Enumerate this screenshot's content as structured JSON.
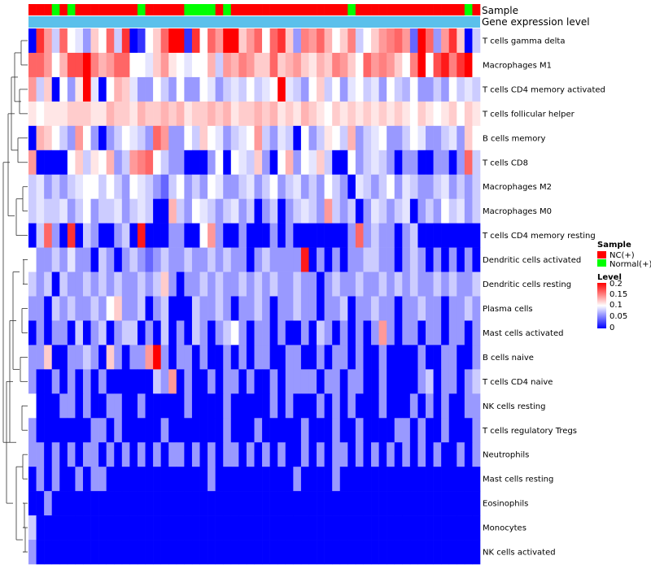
{
  "chart_data": {
    "type": "heatmap",
    "annotation_labels": {
      "sample": "Sample",
      "gene": "Gene expression level"
    },
    "rows": [
      "T cells gamma delta",
      "Macrophages M1",
      "T cells CD4 memory activated",
      "T cells follicular helper",
      "B cells memory",
      "T cells CD8",
      "Macrophages M2",
      "Macrophages M0",
      "T cells CD4 memory resting",
      "Dendritic cells activated",
      "Dendritic cells resting",
      "Plasma cells",
      "Mast cells activated",
      "B cells naive",
      "T cells CD4 naive",
      "NK cells resting",
      "T cells regulatory  Tregs",
      "Neutrophils",
      "Mast cells resting",
      "Eosinophils",
      "Monocytes",
      "NK cells activated"
    ],
    "sample_groups": [
      "NC",
      "NC",
      "NC",
      "N",
      "NC",
      "N",
      "NC",
      "NC",
      "NC",
      "NC",
      "NC",
      "NC",
      "NC",
      "NC",
      "N",
      "NC",
      "NC",
      "NC",
      "NC",
      "NC",
      "N",
      "N",
      "N",
      "N",
      "NC",
      "N",
      "NC",
      "NC",
      "NC",
      "NC",
      "NC",
      "NC",
      "NC",
      "NC",
      "NC",
      "NC",
      "NC",
      "NC",
      "NC",
      "NC",
      "NC",
      "N",
      "NC",
      "NC",
      "NC",
      "NC",
      "NC",
      "NC",
      "NC",
      "NC",
      "NC",
      "NC",
      "NC",
      "NC",
      "NC",
      "NC",
      "N",
      "NC"
    ],
    "values": [
      [
        0.0,
        0.18,
        0.14,
        0.08,
        0.16,
        0.1,
        0.09,
        0.06,
        0.12,
        0.1,
        0.16,
        0.08,
        0.18,
        0.0,
        0.02,
        0.1,
        0.12,
        0.16,
        0.2,
        0.2,
        0.02,
        0.18,
        0.1,
        0.16,
        0.14,
        0.2,
        0.2,
        0.12,
        0.14,
        0.16,
        0.1,
        0.16,
        0.18,
        0.12,
        0.06,
        0.15,
        0.14,
        0.16,
        0.13,
        0.1,
        0.12,
        0.15,
        0.08,
        0.1,
        0.12,
        0.14,
        0.15,
        0.16,
        0.14,
        0.04,
        0.2,
        0.16,
        0.06,
        0.14,
        0.18,
        0.12,
        0.0,
        0.08
      ],
      [
        0.16,
        0.16,
        0.14,
        0.1,
        0.13,
        0.17,
        0.17,
        0.2,
        0.15,
        0.13,
        0.14,
        0.16,
        0.16,
        0.1,
        0.1,
        0.09,
        0.12,
        0.14,
        0.11,
        0.1,
        0.09,
        0.1,
        0.1,
        0.13,
        0.08,
        0.14,
        0.13,
        0.15,
        0.14,
        0.12,
        0.12,
        0.16,
        0.12,
        0.13,
        0.14,
        0.12,
        0.11,
        0.13,
        0.12,
        0.15,
        0.14,
        0.12,
        0.1,
        0.16,
        0.14,
        0.15,
        0.14,
        0.12,
        0.1,
        0.15,
        0.2,
        0.1,
        0.17,
        0.19,
        0.15,
        0.18,
        0.2,
        0.1
      ],
      [
        0.14,
        0.08,
        0.12,
        0.0,
        0.1,
        0.06,
        0.11,
        0.2,
        0.09,
        0.0,
        0.1,
        0.13,
        0.12,
        0.09,
        0.06,
        0.06,
        0.1,
        0.08,
        0.06,
        0.1,
        0.06,
        0.06,
        0.1,
        0.09,
        0.06,
        0.08,
        0.09,
        0.08,
        0.1,
        0.08,
        0.09,
        0.1,
        0.2,
        0.09,
        0.08,
        0.06,
        0.1,
        0.12,
        0.08,
        0.1,
        0.06,
        0.09,
        0.1,
        0.08,
        0.09,
        0.06,
        0.1,
        0.08,
        0.07,
        0.1,
        0.06,
        0.06,
        0.08,
        0.06,
        0.1,
        0.08,
        0.09,
        0.08
      ],
      [
        0.11,
        0.1,
        0.11,
        0.11,
        0.11,
        0.12,
        0.12,
        0.12,
        0.11,
        0.11,
        0.13,
        0.12,
        0.12,
        0.11,
        0.13,
        0.12,
        0.12,
        0.13,
        0.12,
        0.13,
        0.11,
        0.12,
        0.12,
        0.13,
        0.12,
        0.13,
        0.11,
        0.12,
        0.12,
        0.13,
        0.12,
        0.13,
        0.11,
        0.12,
        0.11,
        0.13,
        0.12,
        0.11,
        0.1,
        0.12,
        0.11,
        0.12,
        0.11,
        0.12,
        0.11,
        0.12,
        0.11,
        0.12,
        0.11,
        0.1,
        0.12,
        0.11,
        0.1,
        0.11,
        0.12,
        0.1,
        0.12,
        0.11
      ],
      [
        0.0,
        0.13,
        0.12,
        0.1,
        0.08,
        0.06,
        0.14,
        0.1,
        0.06,
        0.0,
        0.06,
        0.08,
        0.1,
        0.09,
        0.08,
        0.06,
        0.16,
        0.14,
        0.06,
        0.06,
        0.1,
        0.08,
        0.12,
        0.1,
        0.09,
        0.06,
        0.08,
        0.09,
        0.1,
        0.14,
        0.08,
        0.06,
        0.09,
        0.08,
        0.0,
        0.1,
        0.06,
        0.08,
        0.11,
        0.1,
        0.08,
        0.13,
        0.06,
        0.08,
        0.09,
        0.1,
        0.06,
        0.06,
        0.08,
        0.1,
        0.09,
        0.06,
        0.06,
        0.08,
        0.09,
        0.06,
        0.12,
        0.1
      ],
      [
        0.14,
        0.0,
        0.0,
        0.0,
        0.0,
        0.1,
        0.12,
        0.08,
        0.11,
        0.1,
        0.13,
        0.06,
        0.08,
        0.14,
        0.15,
        0.16,
        0.1,
        0.08,
        0.06,
        0.06,
        0.0,
        0.0,
        0.0,
        0.06,
        0.1,
        0.0,
        0.1,
        0.09,
        0.08,
        0.12,
        0.06,
        0.0,
        0.1,
        0.13,
        0.06,
        0.1,
        0.09,
        0.12,
        0.08,
        0.0,
        0.0,
        0.1,
        0.06,
        0.08,
        0.09,
        0.08,
        0.06,
        0.0,
        0.06,
        0.06,
        0.0,
        0.0,
        0.06,
        0.06,
        0.0,
        0.06,
        0.16,
        0.08
      ],
      [
        0.08,
        0.09,
        0.06,
        0.08,
        0.06,
        0.08,
        0.09,
        0.1,
        0.1,
        0.08,
        0.1,
        0.08,
        0.06,
        0.1,
        0.09,
        0.08,
        0.06,
        0.04,
        0.08,
        0.1,
        0.06,
        0.08,
        0.06,
        0.1,
        0.09,
        0.06,
        0.06,
        0.08,
        0.09,
        0.06,
        0.08,
        0.1,
        0.06,
        0.08,
        0.09,
        0.06,
        0.08,
        0.06,
        0.1,
        0.08,
        0.06,
        0.0,
        0.09,
        0.08,
        0.06,
        0.08,
        0.1,
        0.06,
        0.09,
        0.08,
        0.06,
        0.06,
        0.08,
        0.09,
        0.06,
        0.08,
        0.06,
        0.08
      ],
      [
        0.08,
        0.09,
        0.08,
        0.08,
        0.09,
        0.06,
        0.08,
        0.1,
        0.06,
        0.08,
        0.08,
        0.09,
        0.06,
        0.08,
        0.09,
        0.08,
        0.0,
        0.0,
        0.13,
        0.08,
        0.06,
        0.1,
        0.09,
        0.08,
        0.06,
        0.08,
        0.09,
        0.06,
        0.08,
        0.0,
        0.06,
        0.08,
        0.0,
        0.06,
        0.08,
        0.09,
        0.08,
        0.06,
        0.14,
        0.08,
        0.06,
        0.08,
        0.0,
        0.06,
        0.09,
        0.08,
        0.06,
        0.08,
        0.09,
        0.0,
        0.06,
        0.08,
        0.06,
        0.1,
        0.08,
        0.09,
        0.06,
        0.08
      ],
      [
        0.0,
        0.08,
        0.16,
        0.06,
        0.0,
        0.18,
        0.0,
        0.08,
        0.06,
        0.0,
        0.0,
        0.06,
        0.08,
        0.0,
        0.19,
        0.0,
        0.0,
        0.0,
        0.06,
        0.06,
        0.0,
        0.0,
        0.1,
        0.14,
        0.06,
        0.0,
        0.0,
        0.06,
        0.0,
        0.0,
        0.0,
        0.06,
        0.0,
        0.06,
        0.0,
        0.0,
        0.0,
        0.0,
        0.0,
        0.0,
        0.0,
        0.06,
        0.16,
        0.06,
        0.08,
        0.06,
        0.06,
        0.0,
        0.06,
        0.08,
        0.0,
        0.0,
        0.0,
        0.0,
        0.0,
        0.0,
        0.0,
        0.0
      ],
      [
        0.1,
        0.06,
        0.06,
        0.08,
        0.06,
        0.09,
        0.06,
        0.06,
        0.0,
        0.08,
        0.06,
        0.0,
        0.06,
        0.08,
        0.06,
        0.04,
        0.06,
        0.08,
        0.06,
        0.06,
        0.08,
        0.06,
        0.06,
        0.08,
        0.06,
        0.08,
        0.06,
        0.06,
        0.0,
        0.06,
        0.08,
        0.06,
        0.06,
        0.06,
        0.06,
        0.19,
        0.0,
        0.06,
        0.0,
        0.06,
        0.0,
        0.06,
        0.06,
        0.08,
        0.08,
        0.06,
        0.06,
        0.0,
        0.06,
        0.08,
        0.06,
        0.0,
        0.06,
        0.0,
        0.06,
        0.0,
        0.06,
        0.0
      ],
      [
        0.08,
        0.06,
        0.08,
        0.0,
        0.08,
        0.06,
        0.06,
        0.08,
        0.06,
        0.08,
        0.06,
        0.08,
        0.06,
        0.06,
        0.08,
        0.06,
        0.08,
        0.12,
        0.06,
        0.0,
        0.06,
        0.06,
        0.08,
        0.06,
        0.08,
        0.06,
        0.06,
        0.08,
        0.06,
        0.08,
        0.06,
        0.08,
        0.06,
        0.06,
        0.08,
        0.06,
        0.06,
        0.0,
        0.06,
        0.08,
        0.06,
        0.06,
        0.08,
        0.06,
        0.06,
        0.08,
        0.06,
        0.08,
        0.06,
        0.08,
        0.06,
        0.06,
        0.08,
        0.06,
        0.08,
        0.06,
        0.06,
        0.08
      ],
      [
        0.06,
        0.06,
        0.0,
        0.08,
        0.06,
        0.08,
        0.06,
        0.06,
        0.08,
        0.06,
        0.1,
        0.12,
        0.06,
        0.06,
        0.08,
        0.0,
        0.06,
        0.08,
        0.0,
        0.0,
        0.0,
        0.08,
        0.06,
        0.06,
        0.08,
        0.06,
        0.0,
        0.06,
        0.06,
        0.08,
        0.06,
        0.0,
        0.06,
        0.06,
        0.08,
        0.06,
        0.06,
        0.0,
        0.06,
        0.06,
        0.08,
        0.0,
        0.06,
        0.06,
        0.08,
        0.06,
        0.06,
        0.0,
        0.06,
        0.06,
        0.08,
        0.06,
        0.06,
        0.0,
        0.06,
        0.06,
        0.08,
        0.06
      ],
      [
        0.0,
        0.06,
        0.0,
        0.06,
        0.06,
        0.0,
        0.08,
        0.0,
        0.06,
        0.08,
        0.0,
        0.06,
        0.08,
        0.08,
        0.0,
        0.06,
        0.0,
        0.08,
        0.0,
        0.06,
        0.0,
        0.08,
        0.06,
        0.0,
        0.06,
        0.08,
        0.1,
        0.06,
        0.0,
        0.06,
        0.06,
        0.0,
        0.06,
        0.0,
        0.0,
        0.06,
        0.0,
        0.08,
        0.06,
        0.0,
        0.06,
        0.0,
        0.06,
        0.0,
        0.06,
        0.14,
        0.06,
        0.0,
        0.06,
        0.06,
        0.0,
        0.06,
        0.06,
        0.0,
        0.06,
        0.06,
        0.0,
        0.06
      ],
      [
        0.06,
        0.06,
        0.12,
        0.0,
        0.0,
        0.06,
        0.06,
        0.08,
        0.06,
        0.0,
        0.12,
        0.06,
        0.0,
        0.06,
        0.06,
        0.14,
        0.2,
        0.06,
        0.0,
        0.06,
        0.06,
        0.0,
        0.06,
        0.0,
        0.0,
        0.06,
        0.0,
        0.06,
        0.0,
        0.06,
        0.06,
        0.0,
        0.0,
        0.06,
        0.06,
        0.0,
        0.0,
        0.06,
        0.0,
        0.06,
        0.06,
        0.0,
        0.06,
        0.0,
        0.0,
        0.06,
        0.0,
        0.0,
        0.0,
        0.0,
        0.06,
        0.0,
        0.0,
        0.06,
        0.06,
        0.0,
        0.0,
        0.06
      ],
      [
        0.06,
        0.0,
        0.0,
        0.06,
        0.0,
        0.06,
        0.0,
        0.06,
        0.0,
        0.06,
        0.0,
        0.0,
        0.0,
        0.0,
        0.0,
        0.0,
        0.08,
        0.06,
        0.14,
        0.0,
        0.06,
        0.0,
        0.0,
        0.06,
        0.0,
        0.06,
        0.06,
        0.0,
        0.06,
        0.0,
        0.0,
        0.06,
        0.0,
        0.06,
        0.06,
        0.06,
        0.06,
        0.0,
        0.06,
        0.06,
        0.0,
        0.06,
        0.06,
        0.0,
        0.0,
        0.06,
        0.0,
        0.0,
        0.0,
        0.0,
        0.06,
        0.08,
        0.0,
        0.06,
        0.06,
        0.0,
        0.06,
        0.08
      ],
      [
        0.1,
        0.0,
        0.0,
        0.0,
        0.06,
        0.06,
        0.0,
        0.06,
        0.0,
        0.0,
        0.06,
        0.06,
        0.0,
        0.0,
        0.06,
        0.0,
        0.0,
        0.0,
        0.0,
        0.0,
        0.06,
        0.0,
        0.0,
        0.0,
        0.0,
        0.06,
        0.0,
        0.0,
        0.0,
        0.0,
        0.0,
        0.06,
        0.0,
        0.06,
        0.0,
        0.0,
        0.0,
        0.06,
        0.0,
        0.06,
        0.0,
        0.06,
        0.0,
        0.0,
        0.0,
        0.06,
        0.0,
        0.0,
        0.0,
        0.06,
        0.0,
        0.06,
        0.0,
        0.06,
        0.0,
        0.0,
        0.06,
        0.06
      ],
      [
        0.06,
        0.0,
        0.0,
        0.0,
        0.0,
        0.0,
        0.0,
        0.0,
        0.06,
        0.06,
        0.0,
        0.06,
        0.0,
        0.0,
        0.0,
        0.0,
        0.0,
        0.06,
        0.0,
        0.0,
        0.0,
        0.0,
        0.0,
        0.0,
        0.0,
        0.06,
        0.0,
        0.0,
        0.0,
        0.06,
        0.0,
        0.0,
        0.0,
        0.0,
        0.0,
        0.06,
        0.0,
        0.0,
        0.0,
        0.06,
        0.0,
        0.0,
        0.06,
        0.0,
        0.0,
        0.0,
        0.0,
        0.06,
        0.06,
        0.0,
        0.06,
        0.0,
        0.0,
        0.06,
        0.0,
        0.0,
        0.0,
        0.06
      ],
      [
        0.06,
        0.06,
        0.0,
        0.06,
        0.0,
        0.06,
        0.0,
        0.06,
        0.06,
        0.0,
        0.06,
        0.0,
        0.06,
        0.0,
        0.06,
        0.0,
        0.06,
        0.0,
        0.06,
        0.06,
        0.0,
        0.06,
        0.0,
        0.06,
        0.0,
        0.06,
        0.06,
        0.0,
        0.06,
        0.0,
        0.06,
        0.0,
        0.06,
        0.0,
        0.0,
        0.06,
        0.0,
        0.06,
        0.0,
        0.06,
        0.06,
        0.0,
        0.06,
        0.0,
        0.06,
        0.0,
        0.06,
        0.0,
        0.06,
        0.0,
        0.06,
        0.0,
        0.06,
        0.0,
        0.0,
        0.06,
        0.0,
        0.06
      ],
      [
        0.0,
        0.06,
        0.0,
        0.06,
        0.0,
        0.0,
        0.06,
        0.0,
        0.06,
        0.06,
        0.0,
        0.0,
        0.0,
        0.0,
        0.0,
        0.0,
        0.0,
        0.0,
        0.0,
        0.0,
        0.0,
        0.0,
        0.0,
        0.06,
        0.0,
        0.0,
        0.0,
        0.0,
        0.0,
        0.0,
        0.0,
        0.0,
        0.0,
        0.0,
        0.06,
        0.0,
        0.0,
        0.0,
        0.0,
        0.06,
        0.0,
        0.0,
        0.0,
        0.0,
        0.0,
        0.0,
        0.0,
        0.0,
        0.0,
        0.0,
        0.0,
        0.0,
        0.0,
        0.0,
        0.0,
        0.0,
        0.0,
        0.0
      ],
      [
        0.0,
        0.0,
        0.06,
        0.0,
        0.0,
        0.0,
        0.0,
        0.0,
        0.0,
        0.0,
        0.0,
        0.0,
        0.0,
        0.0,
        0.0,
        0.0,
        0.0,
        0.0,
        0.0,
        0.0,
        0.0,
        0.0,
        0.0,
        0.0,
        0.0,
        0.0,
        0.0,
        0.0,
        0.0,
        0.0,
        0.0,
        0.0,
        0.0,
        0.0,
        0.0,
        0.0,
        0.0,
        0.0,
        0.0,
        0.0,
        0.0,
        0.0,
        0.0,
        0.0,
        0.0,
        0.0,
        0.0,
        0.0,
        0.0,
        0.0,
        0.0,
        0.0,
        0.0,
        0.0,
        0.0,
        0.0,
        0.0,
        0.0
      ],
      [
        0.08,
        0.0,
        0.0,
        0.0,
        0.0,
        0.0,
        0.0,
        0.0,
        0.0,
        0.0,
        0.0,
        0.0,
        0.0,
        0.0,
        0.0,
        0.0,
        0.0,
        0.0,
        0.0,
        0.0,
        0.0,
        0.0,
        0.0,
        0.0,
        0.0,
        0.0,
        0.0,
        0.0,
        0.0,
        0.0,
        0.0,
        0.0,
        0.0,
        0.0,
        0.0,
        0.0,
        0.0,
        0.0,
        0.0,
        0.0,
        0.0,
        0.0,
        0.0,
        0.0,
        0.0,
        0.0,
        0.0,
        0.0,
        0.0,
        0.0,
        0.0,
        0.0,
        0.0,
        0.0,
        0.0,
        0.0,
        0.0,
        0.0
      ],
      [
        0.06,
        0.0,
        0.0,
        0.0,
        0.0,
        0.0,
        0.0,
        0.0,
        0.0,
        0.0,
        0.0,
        0.0,
        0.0,
        0.0,
        0.0,
        0.0,
        0.0,
        0.0,
        0.0,
        0.0,
        0.0,
        0.0,
        0.0,
        0.0,
        0.0,
        0.0,
        0.0,
        0.0,
        0.0,
        0.0,
        0.0,
        0.0,
        0.0,
        0.0,
        0.0,
        0.0,
        0.0,
        0.0,
        0.0,
        0.0,
        0.0,
        0.0,
        0.0,
        0.0,
        0.0,
        0.0,
        0.0,
        0.0,
        0.0,
        0.0,
        0.0,
        0.0,
        0.0,
        0.0,
        0.0,
        0.0,
        0.0,
        0.0
      ]
    ],
    "legend": {
      "sample_title": "Sample",
      "sample_entries": [
        {
          "key": "NC",
          "label": "NC(+)",
          "color": "#ff0000"
        },
        {
          "key": "N",
          "label": "Normal(+)",
          "color": "#00ff00"
        }
      ],
      "level_title": "Level",
      "level_ticks": [
        "0.2",
        "0.15",
        "0.1",
        "0.05",
        "0"
      ],
      "level_range": [
        0,
        0.2
      ]
    },
    "colors": {
      "low": "#0000ff",
      "mid": "#ffffff",
      "high": "#ff0000",
      "gene_bar": "#5bc0eb"
    }
  }
}
